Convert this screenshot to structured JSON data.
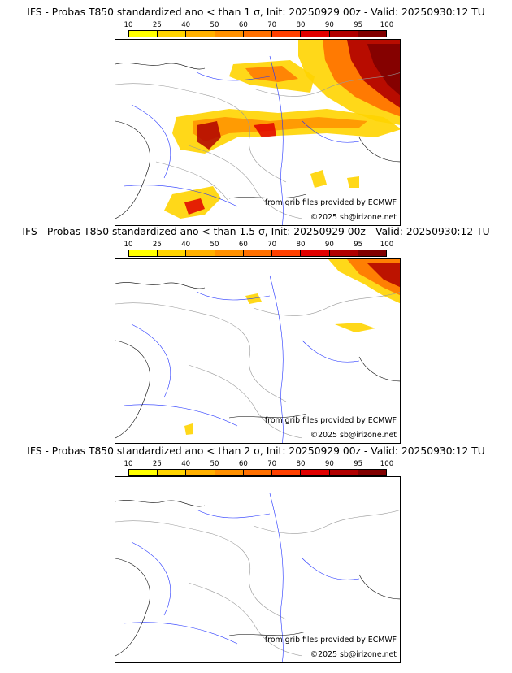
{
  "colorbar": {
    "ticks": [
      "10",
      "25",
      "40",
      "50",
      "60",
      "70",
      "80",
      "90",
      "95",
      "100"
    ],
    "colors": [
      "#ffff00",
      "#ffd400",
      "#ffb000",
      "#ff9000",
      "#ff7000",
      "#ff4000",
      "#e00000",
      "#b00000",
      "#800000"
    ]
  },
  "panels": [
    {
      "title": "IFS - Probas T850  standardized ano < than 1 σ, Init: 20250929 00z - Valid: 20250930:12 TU",
      "credit_source": "from grib files provided by ECMWF",
      "credit_copyright": "©2025 sb@irizone.net",
      "intensity": "high"
    },
    {
      "title": "IFS - Probas T850  standardized ano < than 1.5 σ, Init: 20250929 00z - Valid: 20250930:12 TU",
      "credit_source": "from grib files provided by ECMWF",
      "credit_copyright": "©2025 sb@irizone.net",
      "intensity": "medium"
    },
    {
      "title": "IFS - Probas T850  standardized ano < than 2 σ, Init: 20250929 00z - Valid: 20250930:12 TU",
      "credit_source": "from grib files provided by ECMWF",
      "credit_copyright": "©2025 sb@irizone.net",
      "intensity": "none"
    }
  ]
}
